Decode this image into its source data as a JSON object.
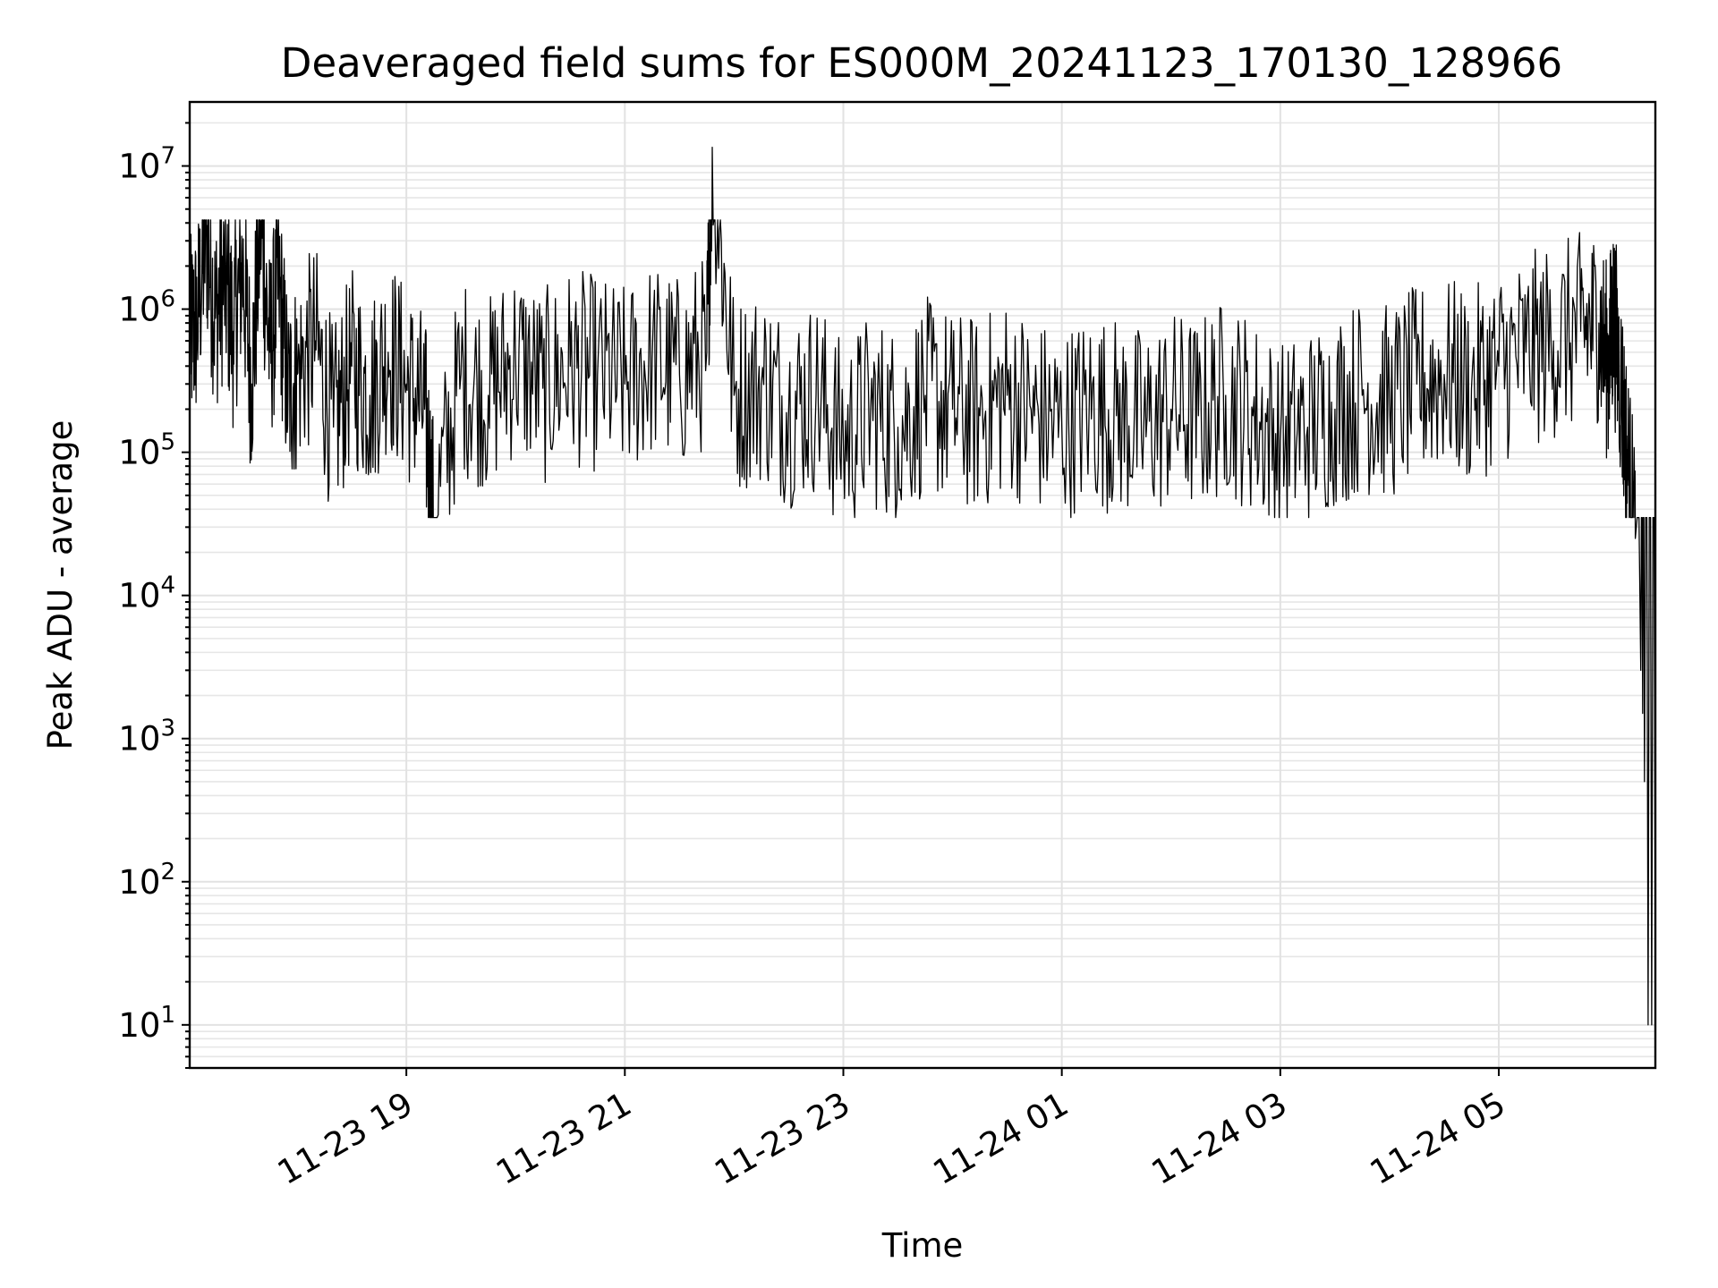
{
  "chart_data": {
    "type": "line",
    "title": "Deaveraged field sums for ES000M_20241123_170130_128966",
    "xlabel": "Time",
    "ylabel": "Peak ADU - average",
    "yscale": "log",
    "ylim": [
      5,
      28000000
    ],
    "xlim": [
      "2024-11-23 17:01",
      "2024-11-24 06:26"
    ],
    "grid": "major and minor, light gray",
    "x_ticks": [
      {
        "value": "2024-11-23 19:00",
        "label": "11-23 19"
      },
      {
        "value": "2024-11-23 21:00",
        "label": "11-23 21"
      },
      {
        "value": "2024-11-23 23:00",
        "label": "11-23 23"
      },
      {
        "value": "2024-11-24 01:00",
        "label": "11-24 01"
      },
      {
        "value": "2024-11-24 03:00",
        "label": "11-24 03"
      },
      {
        "value": "2024-11-24 05:00",
        "label": "11-24 05"
      }
    ],
    "y_ticks": [
      {
        "value": 10,
        "base": "10",
        "exp": "1"
      },
      {
        "value": 100,
        "base": "10",
        "exp": "2"
      },
      {
        "value": 1000,
        "base": "10",
        "exp": "3"
      },
      {
        "value": 10000,
        "base": "10",
        "exp": "4"
      },
      {
        "value": 100000,
        "base": "10",
        "exp": "5"
      },
      {
        "value": 1000000,
        "base": "10",
        "exp": "6"
      },
      {
        "value": 10000000,
        "base": "10",
        "exp": "7"
      }
    ],
    "series": [
      {
        "color": "#000000",
        "x": [
          "2024-11-23 17:01",
          "2024-11-23 17:05",
          "2024-11-23 17:10",
          "2024-11-23 17:15",
          "2024-11-23 17:20",
          "2024-11-23 17:25",
          "2024-11-23 17:30",
          "2024-11-23 17:35",
          "2024-11-23 17:40",
          "2024-11-23 17:45",
          "2024-11-23 17:50",
          "2024-11-23 17:55",
          "2024-11-23 18:00",
          "2024-11-23 18:10",
          "2024-11-23 18:20",
          "2024-11-23 18:30",
          "2024-11-23 18:40",
          "2024-11-23 18:50",
          "2024-11-23 19:00",
          "2024-11-23 19:10",
          "2024-11-23 19:15",
          "2024-11-23 19:30",
          "2024-11-23 19:45",
          "2024-11-23 20:00",
          "2024-11-23 20:15",
          "2024-11-23 20:30",
          "2024-11-23 20:45",
          "2024-11-23 21:00",
          "2024-11-23 21:15",
          "2024-11-23 21:30",
          "2024-11-23 21:45",
          "2024-11-23 21:48",
          "2024-11-23 22:00",
          "2024-11-23 22:15",
          "2024-11-23 22:30",
          "2024-11-23 22:45",
          "2024-11-23 23:00",
          "2024-11-23 23:15",
          "2024-11-23 23:30",
          "2024-11-23 23:45",
          "2024-11-24 00:00",
          "2024-11-24 00:15",
          "2024-11-24 00:30",
          "2024-11-24 00:45",
          "2024-11-24 01:00",
          "2024-11-24 01:15",
          "2024-11-24 01:30",
          "2024-11-24 01:45",
          "2024-11-24 02:00",
          "2024-11-24 02:15",
          "2024-11-24 02:30",
          "2024-11-24 02:45",
          "2024-11-24 03:00",
          "2024-11-24 03:15",
          "2024-11-24 03:30",
          "2024-11-24 03:45",
          "2024-11-24 04:00",
          "2024-11-24 04:15",
          "2024-11-24 04:30",
          "2024-11-24 04:45",
          "2024-11-24 05:00",
          "2024-11-24 05:15",
          "2024-11-24 05:30",
          "2024-11-24 05:45",
          "2024-11-24 05:55",
          "2024-11-24 06:00",
          "2024-11-24 06:03",
          "2024-11-24 06:07",
          "2024-11-24 06:11",
          "2024-11-24 06:15",
          "2024-11-24 06:18",
          "2024-11-24 06:19",
          "2024-11-24 06:20",
          "2024-11-24 06:22",
          "2024-11-24 06:24",
          "2024-11-24 06:26"
        ],
        "y": [
          650000,
          800000,
          3400000,
          900000,
          1600000,
          700000,
          2000000,
          300000,
          4100000,
          500000,
          1500000,
          250000,
          350000,
          600000,
          150000,
          400000,
          250000,
          500000,
          300000,
          200000,
          35000,
          350000,
          250000,
          450000,
          280000,
          400000,
          350000,
          300000,
          450000,
          350000,
          500000,
          13500000,
          250000,
          300000,
          200000,
          250000,
          120000,
          200000,
          150000,
          250000,
          200000,
          180000,
          250000,
          180000,
          150000,
          200000,
          180000,
          150000,
          200000,
          180000,
          250000,
          180000,
          120000,
          150000,
          200000,
          250000,
          220000,
          300000,
          350000,
          280000,
          400000,
          500000,
          600000,
          700000,
          800000,
          400000,
          900000,
          300000,
          80000,
          25000,
          3000,
          1500,
          500,
          10,
          10,
          15
        ]
      }
    ]
  }
}
